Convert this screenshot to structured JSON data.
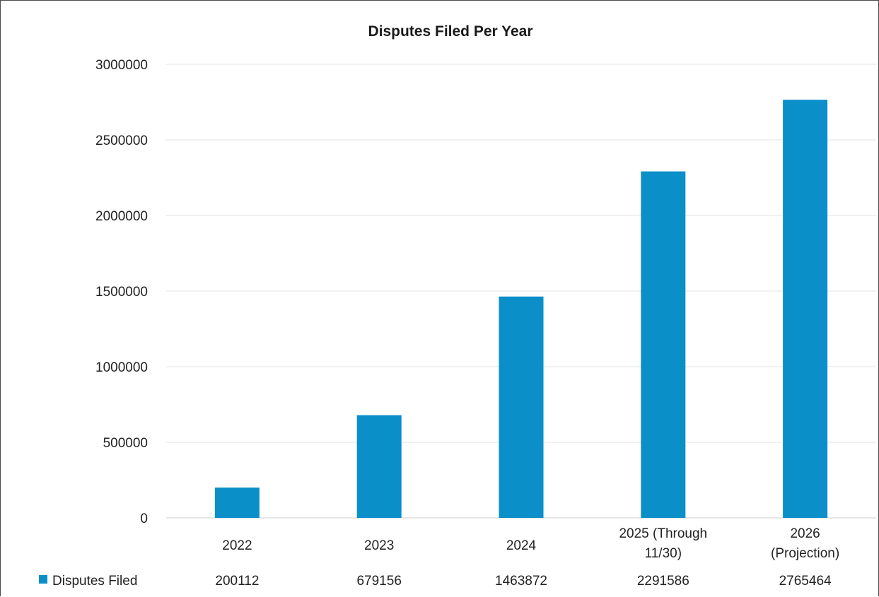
{
  "chart_data": {
    "type": "bar",
    "title": "Disputes Filed Per Year",
    "xlabel": "",
    "ylabel": "",
    "ylim": [
      0,
      3000000
    ],
    "y_ticks": [
      "0",
      "500000",
      "1000000",
      "1500000",
      "2000000",
      "2500000",
      "3000000"
    ],
    "grid": true,
    "legend_position": "bottom data table",
    "categories": [
      [
        "2022"
      ],
      [
        "2023"
      ],
      [
        "2024"
      ],
      [
        "2025 (Through",
        "11/30)"
      ],
      [
        "2026",
        "(Projection)"
      ]
    ],
    "series": [
      {
        "name": "Disputes Filed",
        "color": "#0a8fc9",
        "values": [
          200112,
          679156,
          1463872,
          2291586,
          2765464
        ],
        "labels": [
          "200112",
          "679156",
          "1463872",
          "2291586",
          "2765464"
        ]
      }
    ]
  }
}
